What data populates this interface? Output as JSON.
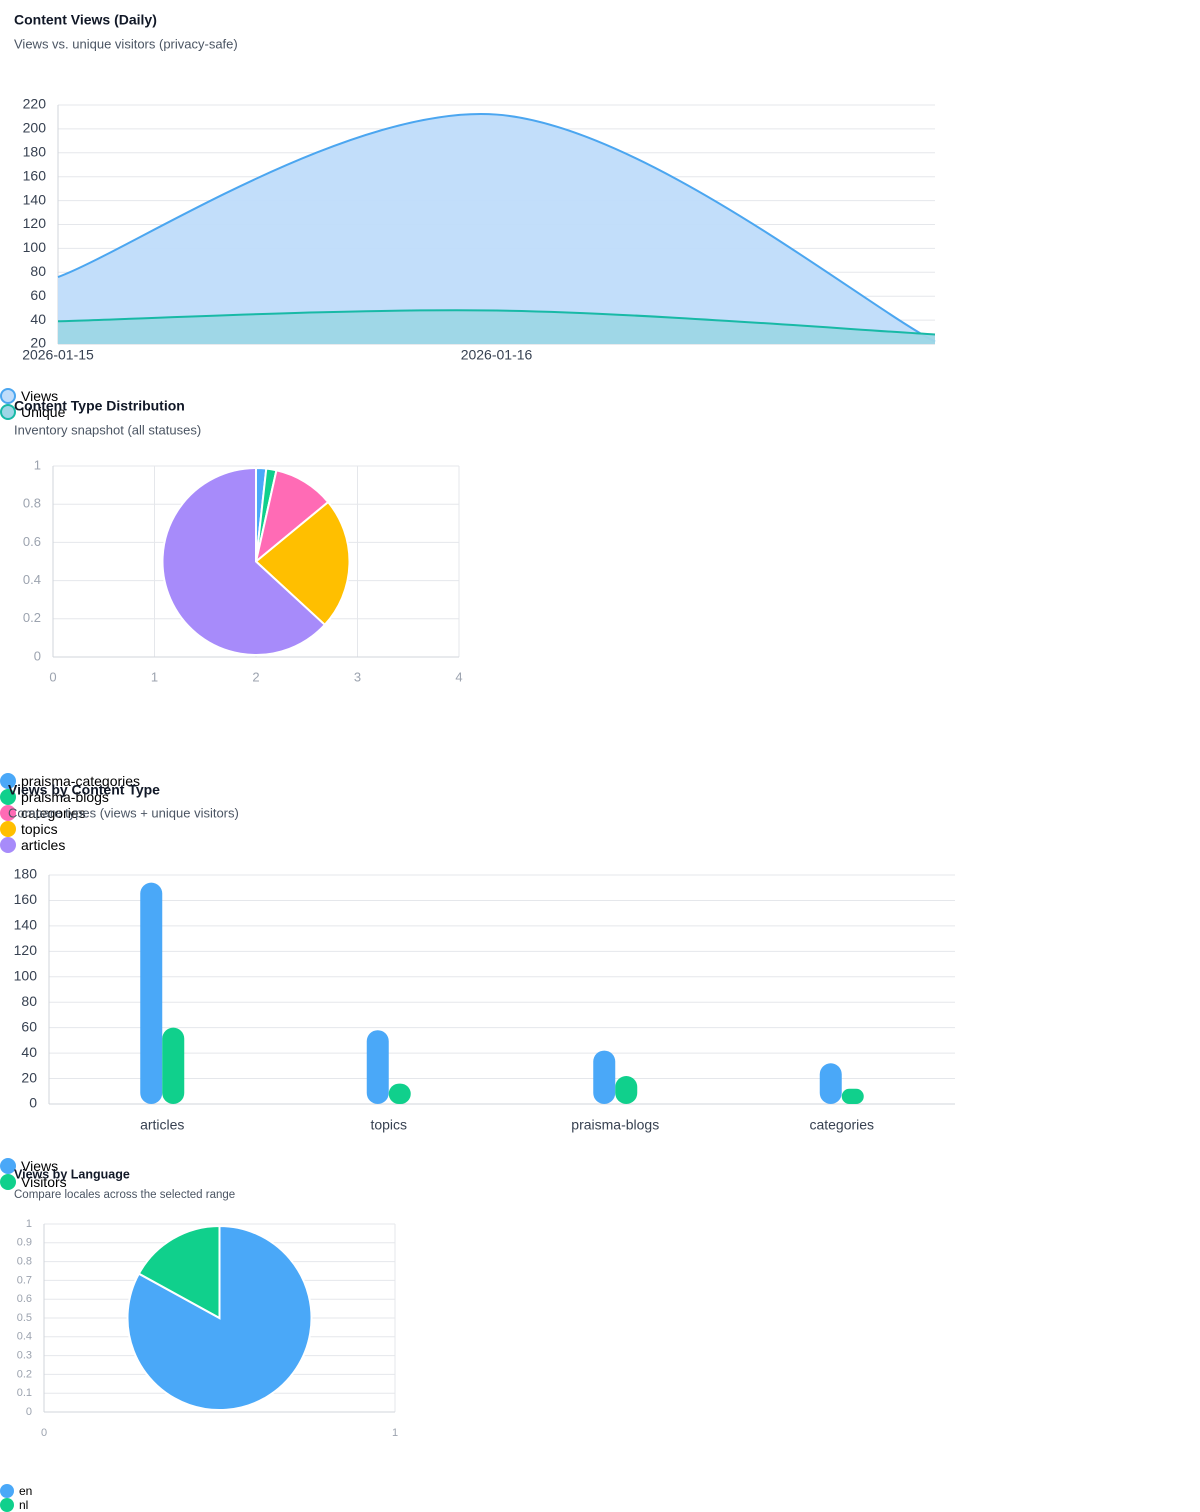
{
  "chart_data": [
    {
      "type": "line",
      "title": "Content Views (Daily)",
      "subtitle": "Views vs. unique visitors (privacy-safe)",
      "categories": [
        "2026-01-15",
        "2026-01-16",
        null
      ],
      "series": [
        {
          "name": "Views",
          "color": "#4ba6f0",
          "fill": "#bfdcfa",
          "values": [
            76,
            212,
            22
          ]
        },
        {
          "name": "Unique",
          "color": "#18b9a6",
          "fill": "#9dd6e6",
          "values": [
            39,
            48,
            28
          ]
        }
      ],
      "ylim": [
        20,
        220
      ],
      "yticks": [
        20,
        40,
        60,
        80,
        100,
        120,
        140,
        160,
        180,
        200,
        220
      ],
      "grid": true,
      "legend": "top-left"
    },
    {
      "type": "pie",
      "title": "Content Type Distribution",
      "subtitle": "Inventory snapshot (all statuses)",
      "categories": [
        "praisma-categories",
        "praisma-blogs",
        "categories",
        "topics",
        "articles"
      ],
      "values": [
        1,
        1,
        6,
        13,
        36
      ],
      "colors": [
        "#4aa8f8",
        "#10d08c",
        "#ff6bb5",
        "#ffbf00",
        "#a78bfa"
      ],
      "xlim": [
        0,
        4
      ],
      "xticks": [
        0,
        1,
        2,
        3,
        4
      ],
      "ylim": [
        0,
        1
      ],
      "yticks": [
        0,
        0.2,
        0.4,
        0.6,
        0.8,
        1
      ],
      "grid": true,
      "legend": "bottom"
    },
    {
      "type": "bar",
      "title": "Views by Content Type",
      "subtitle": "Compare types (views + unique visitors)",
      "categories": [
        "articles",
        "topics",
        "praisma-blogs",
        "categories"
      ],
      "series": [
        {
          "name": "Views",
          "color": "#4aa8f8",
          "values": [
            174,
            58,
            42,
            32
          ]
        },
        {
          "name": "Visitors",
          "color": "#10d08c",
          "values": [
            60,
            16,
            22,
            12
          ]
        }
      ],
      "ylim": [
        0,
        180
      ],
      "yticks": [
        0,
        20,
        40,
        60,
        80,
        100,
        120,
        140,
        160,
        180
      ],
      "grid": true,
      "legend": "top-left"
    },
    {
      "type": "pie",
      "title": "Views by Language",
      "subtitle": "Compare locales across the selected range",
      "categories": [
        "en",
        "nl"
      ],
      "values": [
        83,
        17
      ],
      "colors": [
        "#4aa8f8",
        "#10d08c"
      ],
      "xlim": [
        0,
        1
      ],
      "xticks": [
        0,
        1
      ],
      "ylim": [
        0,
        1
      ],
      "yticks": [
        0,
        0.1,
        0.2,
        0.3,
        0.4,
        0.5,
        0.6,
        0.7,
        0.8,
        0.9,
        1
      ],
      "grid": true,
      "legend": "bottom"
    }
  ]
}
